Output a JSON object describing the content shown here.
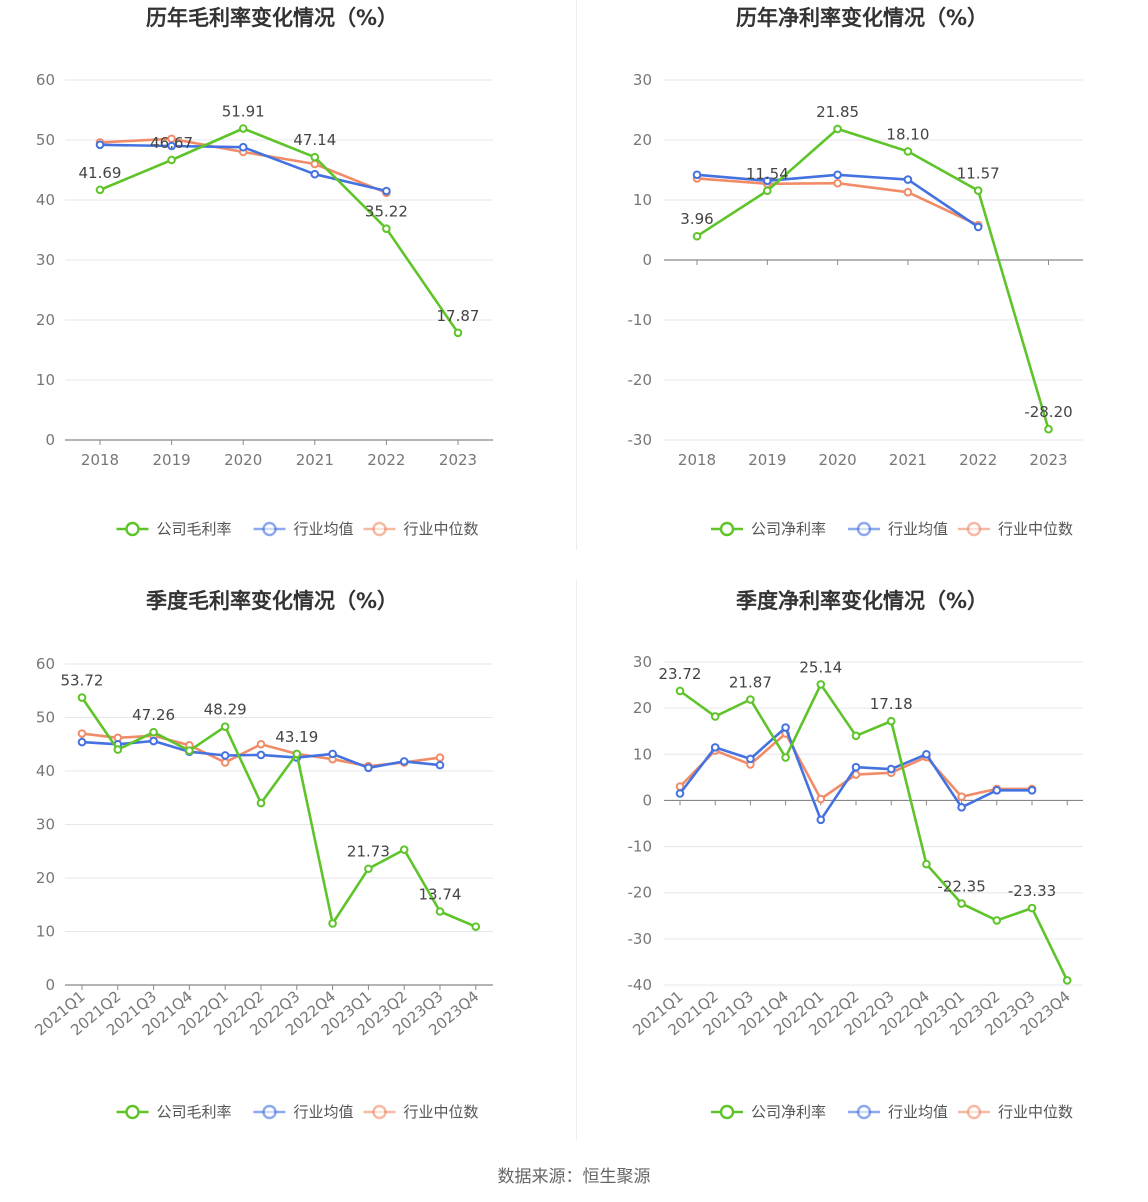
{
  "source": "数据来源：恒生聚源",
  "colors": {
    "company": "#5ec42a",
    "avg": "#4472e0",
    "median": "#f08c68"
  },
  "chart_data": [
    {
      "type": "line",
      "title": "历年毛利率变化情况（%）",
      "categories": [
        "2018",
        "2019",
        "2020",
        "2021",
        "2022",
        "2023"
      ],
      "ylim": [
        0,
        60
      ],
      "yticks": [
        0,
        10,
        20,
        30,
        40,
        50,
        60
      ],
      "grid": true,
      "legend_position": "bottom",
      "series": [
        {
          "name": "公司毛利率",
          "color": "#5ec42a",
          "values": [
            41.69,
            46.67,
            51.91,
            47.14,
            35.22,
            17.87
          ],
          "labels": [
            "41.69",
            "46.67",
            "51.91",
            "47.14",
            "35.22",
            "17.87"
          ]
        },
        {
          "name": "行业均值",
          "color": "#4472e0",
          "values": [
            49.2,
            49.0,
            48.8,
            44.3,
            41.5,
            null
          ]
        },
        {
          "name": "行业中位数",
          "color": "#f08c68",
          "values": [
            49.6,
            50.2,
            48.0,
            46.0,
            41.2,
            null
          ]
        }
      ]
    },
    {
      "type": "line",
      "title": "历年净利率变化情况（%）",
      "categories": [
        "2018",
        "2019",
        "2020",
        "2021",
        "2022",
        "2023"
      ],
      "ylim": [
        -30,
        30
      ],
      "yticks": [
        -30,
        -20,
        -10,
        0,
        10,
        20,
        30
      ],
      "grid": true,
      "legend_position": "bottom",
      "series": [
        {
          "name": "公司净利率",
          "color": "#5ec42a",
          "values": [
            3.96,
            11.54,
            21.85,
            18.1,
            11.57,
            -28.2
          ],
          "labels": [
            "3.96",
            "11.54",
            "21.85",
            "18.10",
            "11.57",
            "-28.20"
          ]
        },
        {
          "name": "行业均值",
          "color": "#4472e0",
          "values": [
            14.2,
            13.2,
            14.2,
            13.4,
            5.5,
            null
          ]
        },
        {
          "name": "行业中位数",
          "color": "#f08c68",
          "values": [
            13.6,
            12.7,
            12.8,
            11.3,
            5.8,
            null
          ]
        }
      ]
    },
    {
      "type": "line",
      "title": "季度毛利率变化情况（%）",
      "categories": [
        "2021Q1",
        "2021Q2",
        "2021Q3",
        "2021Q4",
        "2022Q1",
        "2022Q2",
        "2022Q3",
        "2022Q4",
        "2023Q1",
        "2023Q2",
        "2023Q3",
        "2023Q4"
      ],
      "ylim": [
        0,
        60
      ],
      "yticks": [
        0,
        10,
        20,
        30,
        40,
        50,
        60
      ],
      "grid": true,
      "legend_position": "bottom",
      "series": [
        {
          "name": "公司毛利率",
          "color": "#5ec42a",
          "values": [
            53.72,
            44.0,
            47.26,
            43.8,
            48.29,
            34.0,
            43.19,
            11.5,
            21.73,
            25.3,
            13.74,
            10.9
          ],
          "labels": [
            "53.72",
            "",
            "47.26",
            "",
            "48.29",
            "",
            "43.19",
            "",
            "21.73",
            "",
            "13.74",
            ""
          ]
        },
        {
          "name": "行业均值",
          "color": "#4472e0",
          "values": [
            45.4,
            45.0,
            45.6,
            43.6,
            42.9,
            43.0,
            42.5,
            43.2,
            40.6,
            41.8,
            41.1,
            null
          ]
        },
        {
          "name": "行业中位数",
          "color": "#f08c68",
          "values": [
            47.0,
            46.2,
            46.6,
            44.8,
            41.6,
            45.0,
            43.2,
            42.2,
            40.9,
            41.6,
            42.5,
            null
          ]
        }
      ]
    },
    {
      "type": "line",
      "title": "季度净利率变化情况（%）",
      "categories": [
        "2021Q1",
        "2021Q2",
        "2021Q3",
        "2021Q4",
        "2022Q1",
        "2022Q2",
        "2022Q3",
        "2022Q4",
        "2023Q1",
        "2023Q2",
        "2023Q3",
        "2023Q4"
      ],
      "ylim": [
        -40,
        30
      ],
      "yticks": [
        -40,
        -30,
        -20,
        -10,
        0,
        10,
        20,
        30
      ],
      "grid": true,
      "legend_position": "bottom",
      "series": [
        {
          "name": "公司净利率",
          "color": "#5ec42a",
          "values": [
            23.72,
            18.2,
            21.87,
            9.3,
            25.14,
            14.0,
            17.18,
            -13.8,
            -22.35,
            -26.0,
            -23.33,
            -39.0
          ],
          "labels": [
            "23.72",
            "",
            "21.87",
            "",
            "25.14",
            "",
            "17.18",
            "",
            "-22.35",
            "",
            "-23.33",
            ""
          ]
        },
        {
          "name": "行业均值",
          "color": "#4472e0",
          "values": [
            1.5,
            11.5,
            9.0,
            15.8,
            -4.2,
            7.2,
            6.8,
            10.0,
            -1.5,
            2.2,
            2.2,
            null
          ]
        },
        {
          "name": "行业中位数",
          "color": "#f08c68",
          "values": [
            3.0,
            10.8,
            7.8,
            14.5,
            0.3,
            5.6,
            6.0,
            9.4,
            0.8,
            2.5,
            2.5,
            null
          ]
        }
      ]
    }
  ]
}
